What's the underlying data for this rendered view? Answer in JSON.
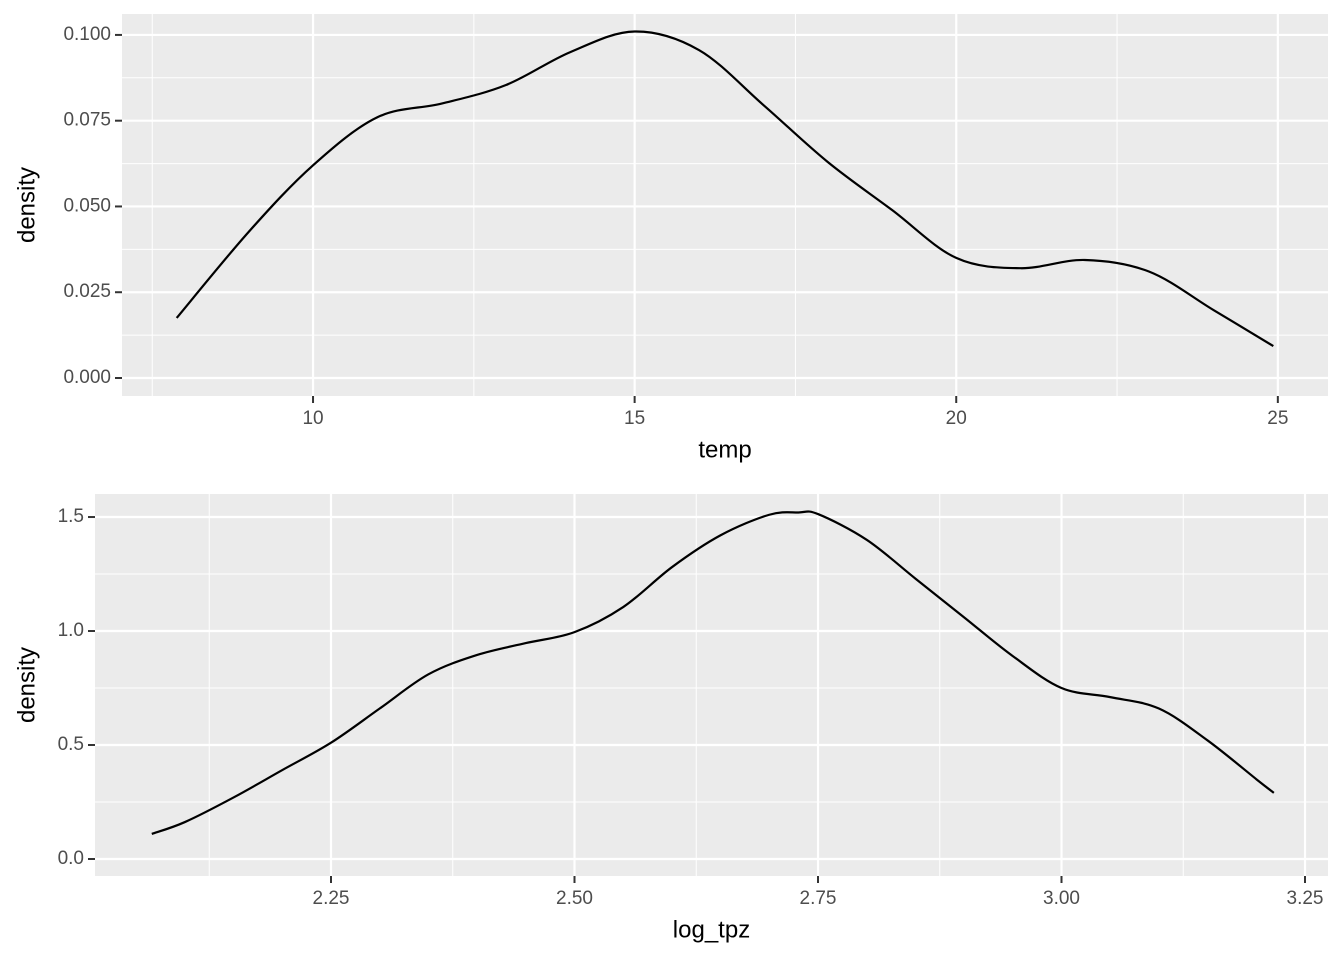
{
  "chart_data": [
    {
      "type": "line",
      "x_label": "temp",
      "y_label": "density",
      "color": "#000000",
      "grid": true,
      "xlim": [
        7.03,
        25.78
      ],
      "ylim": [
        -0.00525,
        0.1061
      ],
      "xticks": [
        10,
        15,
        20,
        25
      ],
      "yticks": [
        {
          "value": 0,
          "label": "0.000"
        },
        {
          "value": 0.025,
          "label": "0.025"
        },
        {
          "value": 0.05,
          "label": "0.050"
        },
        {
          "value": 0.075,
          "label": "0.075"
        },
        {
          "value": 0.1,
          "label": "0.100"
        }
      ],
      "x": [
        7.88,
        9,
        10,
        11,
        12,
        13,
        14,
        15,
        16,
        17,
        18,
        19,
        20,
        21,
        22,
        23,
        24,
        24.93
      ],
      "values": [
        0.0175,
        0.0426,
        0.062,
        0.076,
        0.08,
        0.0854,
        0.095,
        0.101,
        0.0956,
        0.0796,
        0.063,
        0.049,
        0.035,
        0.032,
        0.0344,
        0.031,
        0.0198,
        0.0093
      ]
    },
    {
      "type": "line",
      "x_label": "log_tpz",
      "y_label": "density",
      "color": "#000000",
      "grid": true,
      "xlim": [
        2.0077,
        3.2736
      ],
      "ylim": [
        -0.0746,
        1.601
      ],
      "xticks": [
        2.25,
        {
          "value": 2.5,
          "label": "2.50"
        },
        2.75,
        {
          "value": 3,
          "label": "3.00"
        },
        3.25
      ],
      "yticks": [
        {
          "value": 0,
          "label": "0.0"
        },
        0.5,
        {
          "value": 1,
          "label": "1.0"
        },
        1.5
      ],
      "x": [
        2.066,
        2.1,
        2.15,
        2.2,
        2.25,
        2.3,
        2.35,
        2.4,
        2.45,
        2.5,
        2.55,
        2.6,
        2.65,
        2.7,
        2.73,
        2.75,
        2.8,
        2.85,
        2.9,
        2.95,
        3.0,
        3.05,
        3.1,
        3.15,
        3.2,
        3.218
      ],
      "values": [
        0.11,
        0.162,
        0.27,
        0.39,
        0.51,
        0.66,
        0.81,
        0.895,
        0.947,
        0.995,
        1.105,
        1.28,
        1.42,
        1.51,
        1.52,
        1.513,
        1.4,
        1.23,
        1.06,
        0.89,
        0.75,
        0.71,
        0.66,
        0.52,
        0.35,
        0.29
      ]
    }
  ]
}
